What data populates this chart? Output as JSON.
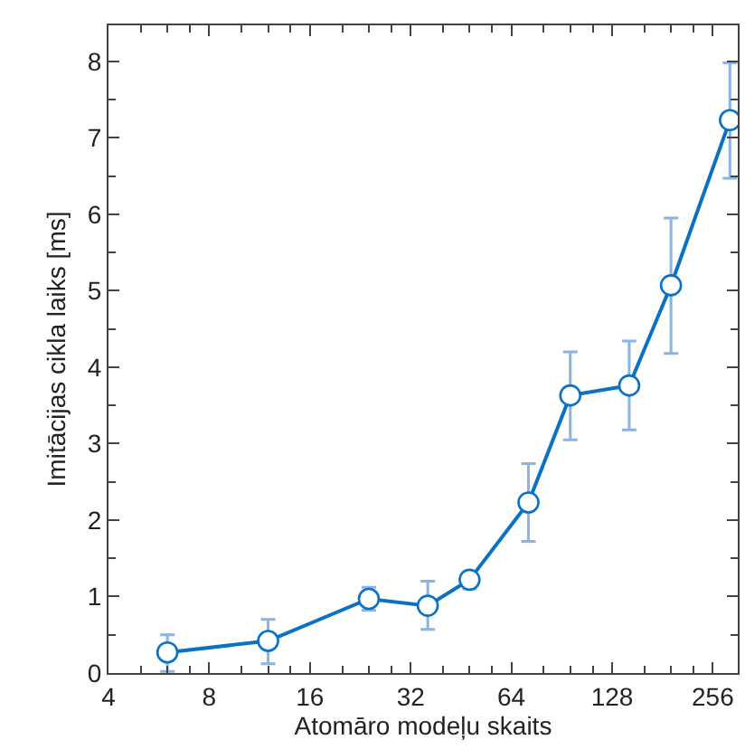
{
  "chart_data": {
    "type": "line",
    "xlabel": "Atomāro modeļu skaits",
    "ylabel": "Imitācijas cikla laiks [ms]",
    "x": [
      6,
      12,
      24,
      36,
      48,
      72,
      96,
      144,
      192,
      288
    ],
    "series": [
      {
        "color": "#0a72c4",
        "values": [
          0.27,
          0.42,
          0.97,
          0.88,
          1.22,
          2.23,
          3.63,
          3.76,
          5.07,
          7.23
        ],
        "errors": [
          [
            0.02,
            0.5
          ],
          [
            0.12,
            0.7
          ],
          [
            0.82,
            1.12
          ],
          [
            0.57,
            1.2
          ],
          [
            1.1,
            1.32
          ],
          [
            1.72,
            2.74
          ],
          [
            3.05,
            4.2
          ],
          [
            3.18,
            4.34
          ],
          [
            4.18,
            5.95
          ],
          [
            6.47,
            7.98
          ]
        ]
      }
    ],
    "log": "x",
    "xlim": [
      4,
      304
    ],
    "xticks": [
      4,
      8,
      16,
      32,
      64,
      128,
      256
    ],
    "ylim": [
      0,
      8.47
    ],
    "yticks": [
      0,
      1,
      2,
      3,
      4,
      5,
      6,
      7,
      8
    ],
    "marker": "circle",
    "line_style": "solid"
  }
}
